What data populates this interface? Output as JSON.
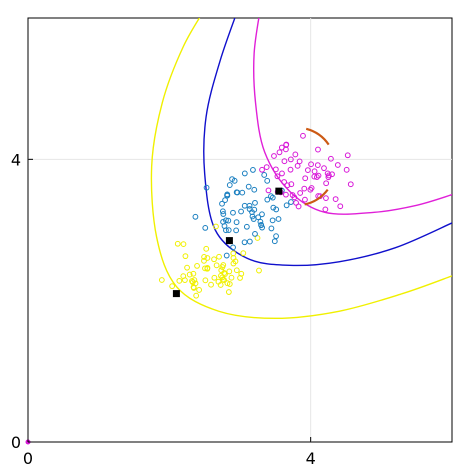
{
  "chart_data": {
    "type": "scatter",
    "xlim": [
      0,
      6
    ],
    "ylim": [
      0,
      6
    ],
    "x_ticks": [
      "0",
      "4"
    ],
    "y_ticks": [
      "0",
      "4"
    ],
    "x_tick_values": [
      0,
      4
    ],
    "y_tick_values": [
      0,
      4
    ],
    "grid": true,
    "colors": {
      "yellow": "#f0f000",
      "blue": "#1010cc",
      "magenta": "#e020d8",
      "cyan_points": "#1a7fc0",
      "yellow_points": "#f0f000",
      "magenta_points": "#d818d8",
      "arc": "#cc5a14",
      "markers": "#000000",
      "grid": "#e6e6e6"
    },
    "clusters": [
      {
        "color": "yellow_points",
        "center": [
          2.6,
          2.45
        ],
        "spread": [
          0.28,
          0.22
        ],
        "count": 60,
        "seed": 11
      },
      {
        "color": "cyan_points",
        "center": [
          3.1,
          3.25
        ],
        "spread": [
          0.27,
          0.24
        ],
        "count": 65,
        "seed": 23
      },
      {
        "color": "magenta_points",
        "center": [
          3.95,
          3.75
        ],
        "spread": [
          0.27,
          0.24
        ],
        "count": 60,
        "seed": 37
      }
    ],
    "markers": [
      {
        "x": 2.1,
        "y": 2.1
      },
      {
        "x": 2.85,
        "y": 2.85
      },
      {
        "x": 3.55,
        "y": 3.55
      }
    ],
    "curves": [
      {
        "color": "yellow",
        "points": [
          [
            2.55,
            6.2
          ],
          [
            2.2,
            5.6
          ],
          [
            1.9,
            4.8
          ],
          [
            1.75,
            3.9
          ],
          [
            1.82,
            2.9
          ],
          [
            2.1,
            2.2
          ],
          [
            2.7,
            1.85
          ],
          [
            3.5,
            1.75
          ],
          [
            4.4,
            1.85
          ],
          [
            5.3,
            2.1
          ],
          [
            6.0,
            2.35
          ]
        ]
      },
      {
        "color": "blue",
        "points": [
          [
            3.0,
            6.2
          ],
          [
            2.72,
            5.4
          ],
          [
            2.52,
            4.6
          ],
          [
            2.5,
            3.8
          ],
          [
            2.65,
            3.0
          ],
          [
            3.1,
            2.6
          ],
          [
            3.7,
            2.5
          ],
          [
            4.4,
            2.55
          ],
          [
            5.2,
            2.75
          ],
          [
            6.0,
            3.1
          ]
        ]
      },
      {
        "color": "magenta",
        "points": [
          [
            3.3,
            6.2
          ],
          [
            3.2,
            5.5
          ],
          [
            3.22,
            4.8
          ],
          [
            3.35,
            4.1
          ],
          [
            3.7,
            3.55
          ],
          [
            4.2,
            3.25
          ],
          [
            4.9,
            3.25
          ],
          [
            5.5,
            3.35
          ],
          [
            6.0,
            3.5
          ]
        ]
      }
    ],
    "arc": {
      "center": [
        3.8,
        3.9
      ],
      "radius": 0.55,
      "start_deg": -78,
      "end_deg": 110
    },
    "origin_dot": {
      "x": 0,
      "y": 0
    }
  }
}
